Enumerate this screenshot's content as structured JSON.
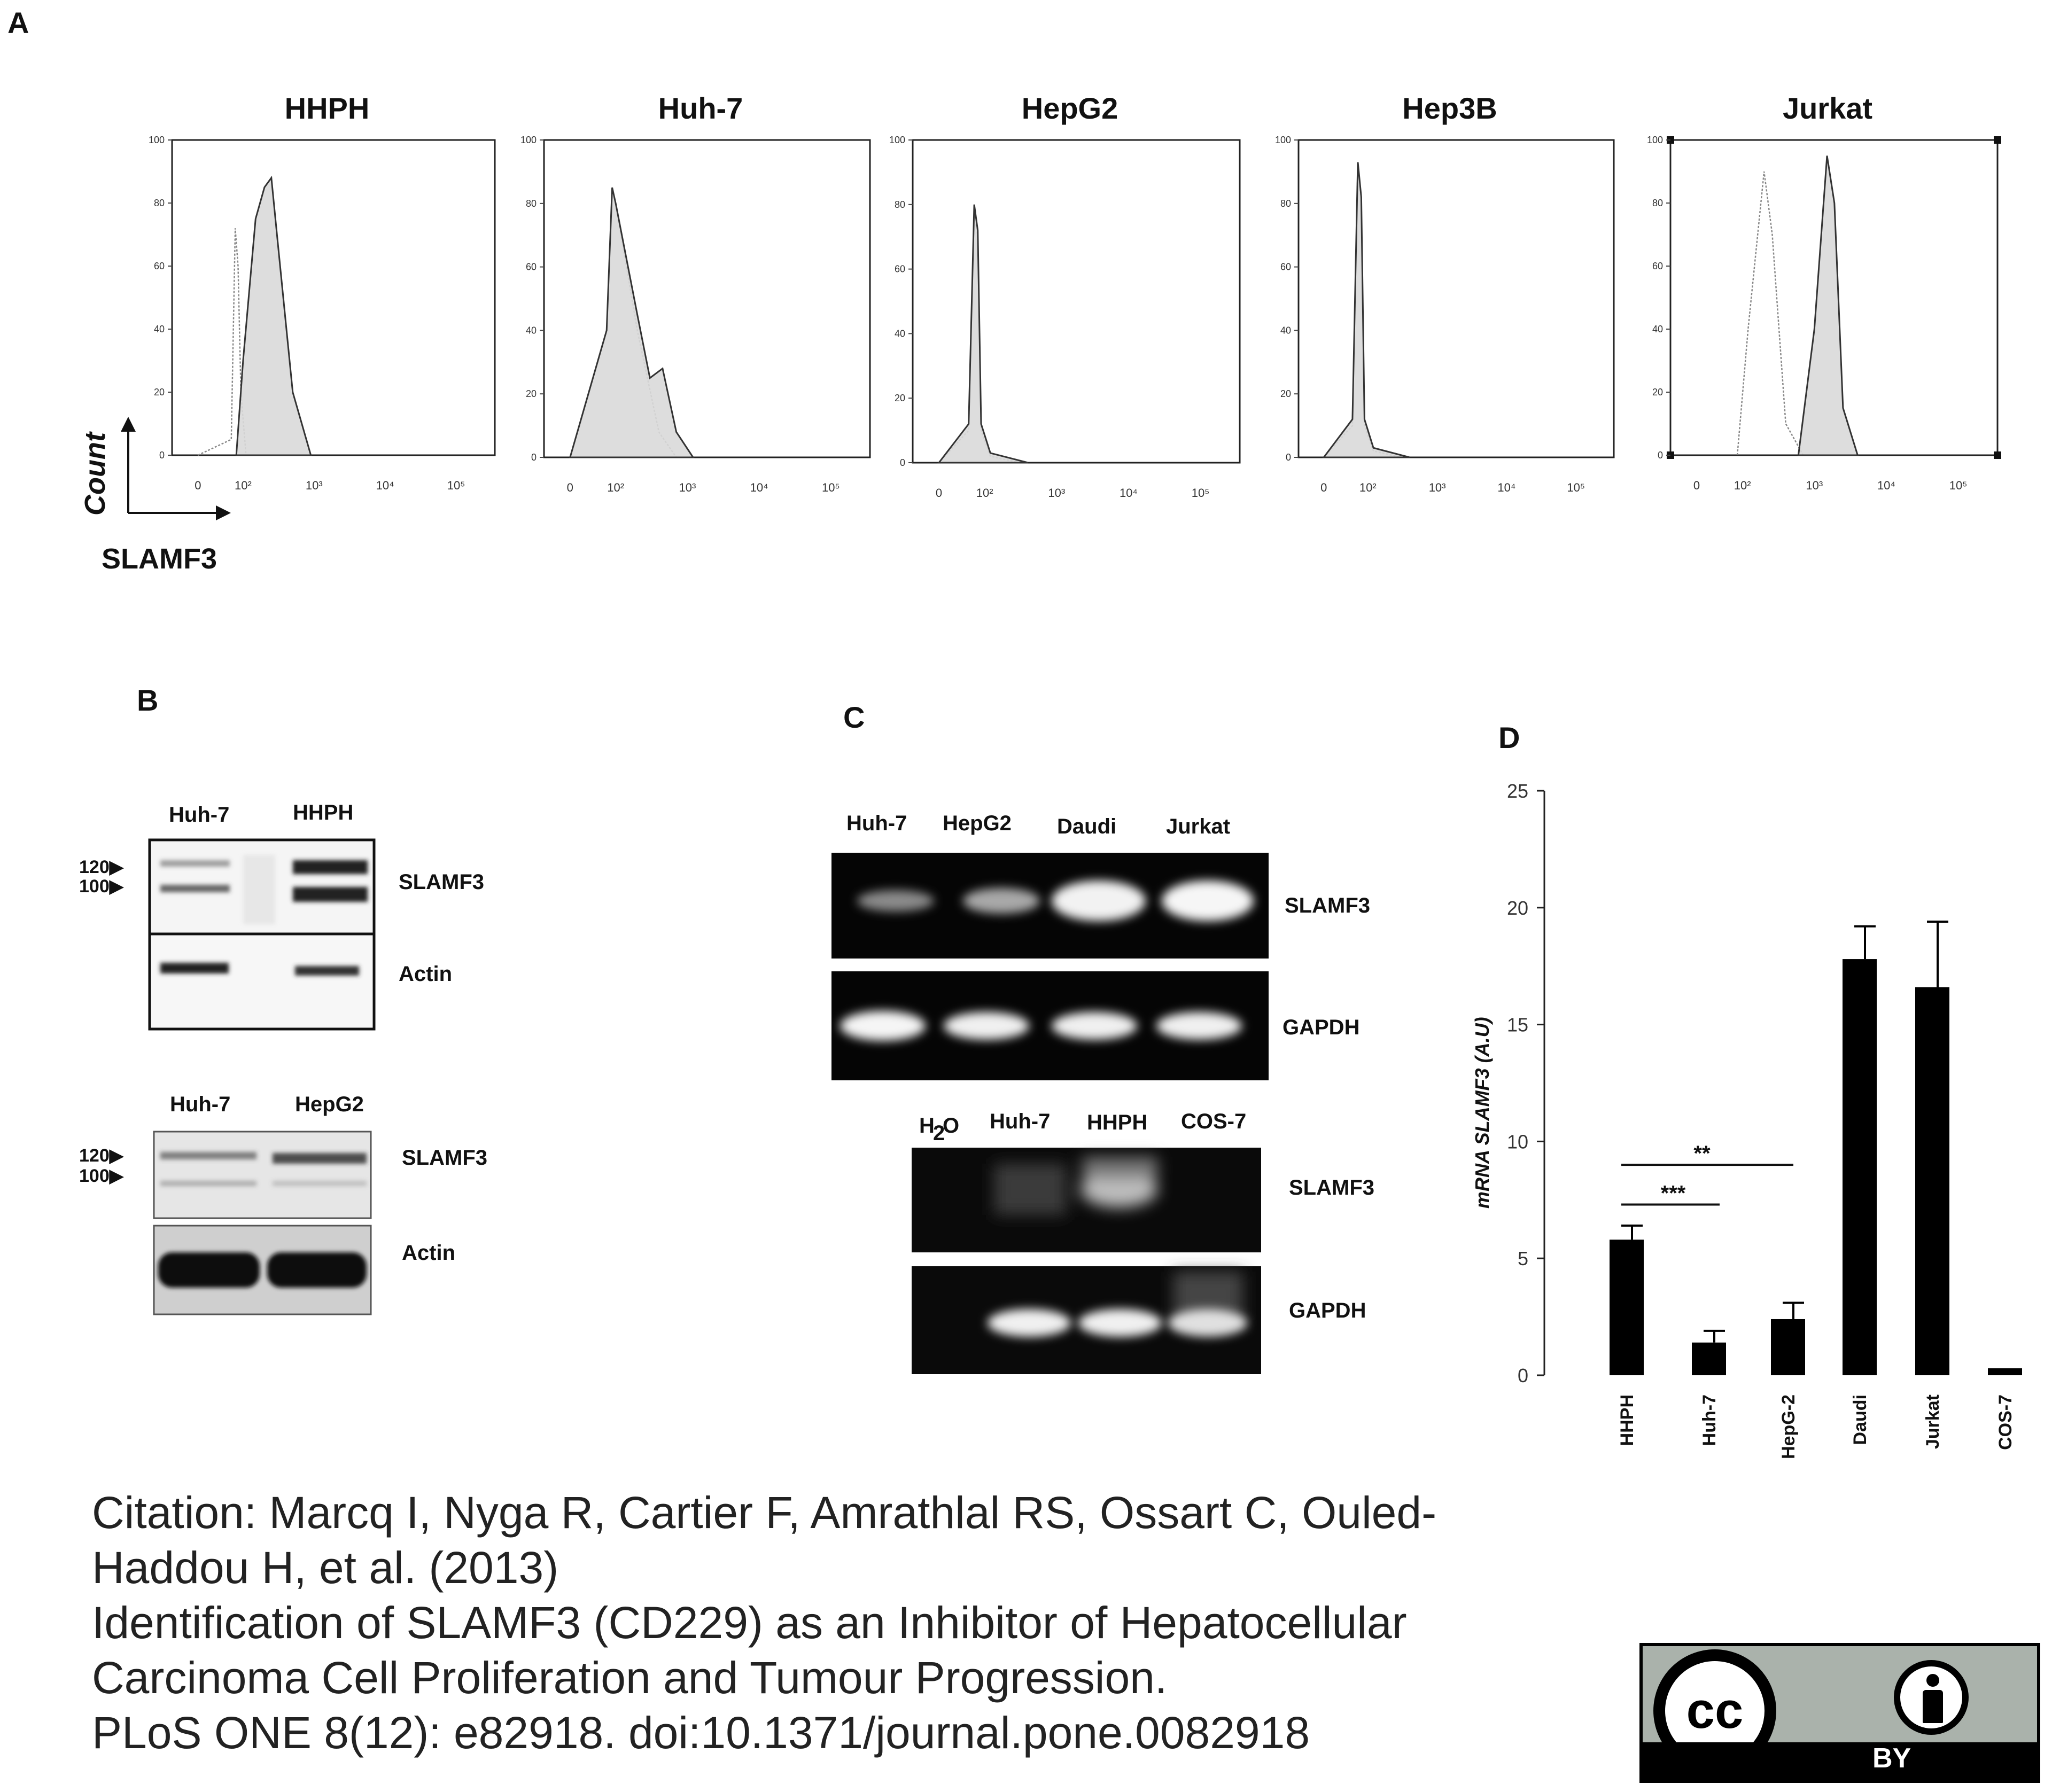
{
  "panels": {
    "A": {
      "letter": "A",
      "y_axis_label": "Count",
      "x_axis_label": "SLAMF3",
      "y_ticks": [
        "0",
        "20",
        "40",
        "60",
        "80",
        "100"
      ],
      "x_ticks": [
        "0",
        "10²",
        "10³",
        "10⁴",
        "10⁵"
      ]
    },
    "B": {
      "letter": "B",
      "blot1_lanes": [
        "Huh-7",
        "HHPH"
      ],
      "blot2_lanes": [
        "Huh-7",
        "HepG2"
      ],
      "bands": [
        "SLAMF3",
        "Actin"
      ],
      "mw_markers": [
        "120▶",
        "100▶"
      ]
    },
    "C": {
      "letter": "C",
      "gel1_lanes": [
        "Huh-7",
        "HepG2",
        "Daudi",
        "Jurkat"
      ],
      "gel2_lanes": [
        "H",
        "O",
        "Huh-7",
        "HHPH",
        "COS-7"
      ],
      "gel2_sub": "2",
      "bands": [
        "SLAMF3",
        "GAPDH"
      ]
    },
    "D": {
      "letter": "D",
      "significance": [
        "**",
        "***"
      ]
    }
  },
  "chart_data": [
    {
      "type": "area",
      "title": "HHPH",
      "xscale": "log",
      "ylim": [
        0,
        100
      ],
      "series": [
        {
          "name": "",
          "style": "outline",
          "x": [
            0,
            30,
            45,
            60,
            80,
            110
          ],
          "y": [
            0,
            5,
            72,
            60,
            20,
            0
          ]
        },
        {
          "name": "",
          "style": "filled",
          "x": [
            50,
            100,
            150,
            200,
            250,
            300,
            500,
            900
          ],
          "y": [
            0,
            30,
            75,
            85,
            88,
            70,
            20,
            0
          ]
        }
      ]
    },
    {
      "type": "area",
      "title": "Huh-7",
      "xscale": "log",
      "ylim": [
        0,
        100
      ],
      "series": [
        {
          "name": "",
          "style": "outline",
          "x": [
            0,
            40,
            70,
            100,
            200,
            400,
            700
          ],
          "y": [
            0,
            40,
            85,
            80,
            40,
            8,
            0
          ]
        },
        {
          "name": "",
          "style": "filled",
          "x": [
            0,
            40,
            70,
            100,
            200,
            300,
            450,
            700,
            1200
          ],
          "y": [
            0,
            40,
            85,
            80,
            45,
            25,
            28,
            8,
            0
          ]
        }
      ]
    },
    {
      "type": "area",
      "title": "HepG2",
      "xscale": "log",
      "ylim": [
        0,
        100
      ],
      "series": [
        {
          "name": "",
          "style": "outline",
          "x": [
            0,
            20,
            35,
            50,
            70,
            120,
            300
          ],
          "y": [
            0,
            10,
            78,
            70,
            10,
            2,
            0
          ]
        },
        {
          "name": "",
          "style": "filled",
          "x": [
            0,
            20,
            35,
            50,
            70,
            120,
            400
          ],
          "y": [
            0,
            12,
            80,
            72,
            12,
            3,
            0
          ]
        }
      ]
    },
    {
      "type": "area",
      "title": "Hep3B",
      "xscale": "log",
      "ylim": [
        0,
        100
      ],
      "series": [
        {
          "name": "",
          "style": "outline",
          "x": [
            0,
            20,
            35,
            50,
            70,
            120,
            300
          ],
          "y": [
            0,
            10,
            93,
            80,
            10,
            2,
            0
          ]
        },
        {
          "name": "",
          "style": "filled",
          "x": [
            0,
            20,
            35,
            50,
            70,
            120,
            400
          ],
          "y": [
            0,
            12,
            93,
            82,
            12,
            3,
            0
          ]
        }
      ]
    },
    {
      "type": "area",
      "title": "Jurkat",
      "xscale": "log",
      "ylim": [
        0,
        100
      ],
      "series": [
        {
          "name": "",
          "style": "outline",
          "x": [
            60,
            120,
            200,
            260,
            400,
            700
          ],
          "y": [
            0,
            40,
            90,
            70,
            10,
            0
          ]
        },
        {
          "name": "",
          "style": "filled",
          "x": [
            600,
            1000,
            1500,
            1900,
            2500,
            4000
          ],
          "y": [
            0,
            40,
            95,
            80,
            15,
            0
          ]
        }
      ]
    },
    {
      "type": "bar",
      "categories": [
        "HHPH",
        "Huh-7",
        "HepG-2",
        "Daudi",
        "Jurkat",
        "COS-7"
      ],
      "values": [
        5.8,
        1.4,
        2.4,
        17.8,
        16.6,
        0.3
      ],
      "errors": [
        0.6,
        0.5,
        0.7,
        1.4,
        2.8,
        0
      ],
      "ylabel": "mRNA SLAMF3 (A.U)",
      "ylim": [
        0,
        25
      ],
      "yticks": [
        0,
        5,
        10,
        15,
        20,
        25
      ]
    }
  ],
  "citation": {
    "line1": "Citation: Marcq I, Nyga R, Cartier F, Amrathlal RS, Ossart C, Ouled-",
    "line2": "Haddou H, et al. (2013)",
    "line3": "Identification of SLAMF3 (CD229) as an Inhibitor of Hepatocellular",
    "line4": "Carcinoma Cell Proliferation and Tumour Progression.",
    "line5": "PLoS ONE 8(12): e82918. doi:10.1371/journal.pone.0082918"
  },
  "license_badge": {
    "cc_label": "cc",
    "by_label": "BY",
    "icons": [
      "creative-commons-icon",
      "attribution-person-icon"
    ]
  }
}
